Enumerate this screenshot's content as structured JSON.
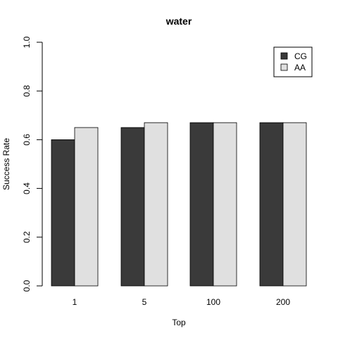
{
  "chart_data": {
    "type": "bar",
    "title": "water",
    "xlabel": "Top",
    "ylabel": "Success Rate",
    "categories": [
      "1",
      "5",
      "100",
      "200"
    ],
    "series": [
      {
        "name": "CG",
        "values": [
          0.6,
          0.65,
          0.67,
          0.67
        ],
        "color": "#3a3a3a"
      },
      {
        "name": "AA",
        "values": [
          0.65,
          0.67,
          0.67,
          0.67
        ],
        "color": "#e0e0e0"
      }
    ],
    "ylim": [
      0,
      1
    ],
    "yticks": [
      0.0,
      0.2,
      0.4,
      0.6,
      0.8,
      1.0
    ],
    "ytick_labels": [
      "0.0",
      "0.2",
      "0.4",
      "0.6",
      "0.8",
      "1.0"
    ],
    "grid": false,
    "legend_position": "top-right"
  }
}
